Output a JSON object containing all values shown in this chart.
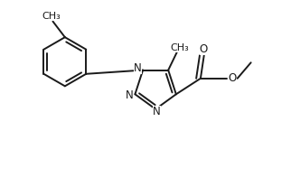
{
  "bg_color": "#ffffff",
  "line_color": "#1a1a1a",
  "line_width": 1.4,
  "font_size": 8.5,
  "fig_width": 3.22,
  "fig_height": 1.97,
  "dpi": 100,
  "xlim": [
    0,
    10
  ],
  "ylim": [
    0,
    6.1
  ]
}
